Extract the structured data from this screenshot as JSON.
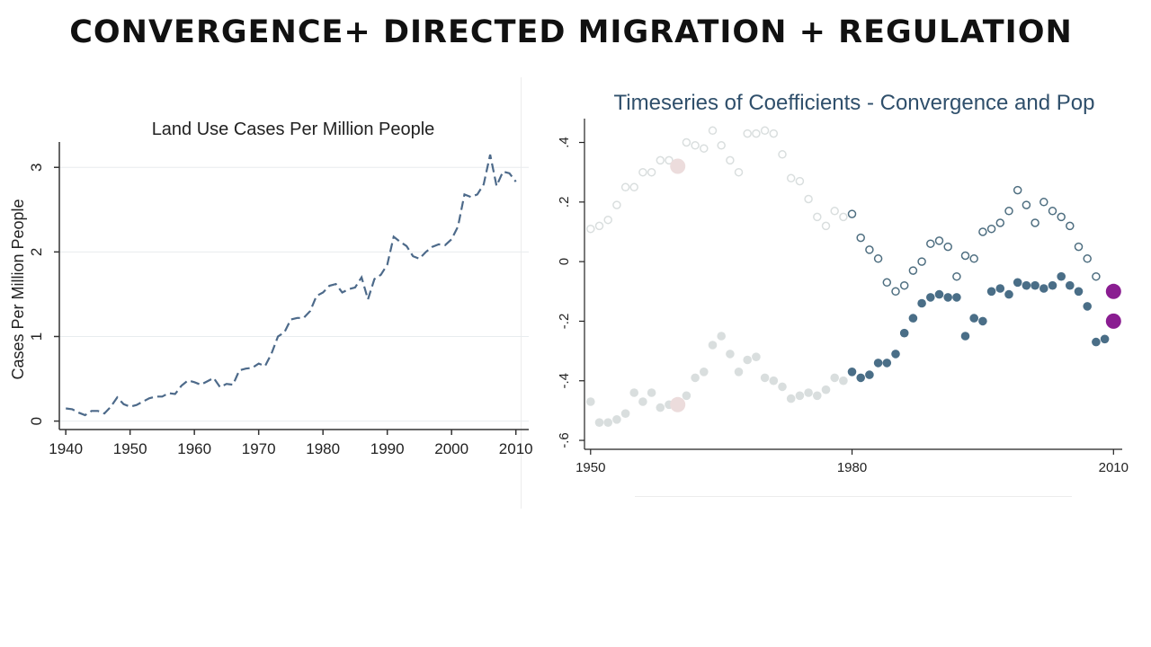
{
  "slide": {
    "title": "CONVERGENCE+ DIRECTED MIGRATION + REGULATION"
  },
  "chart_data": [
    {
      "type": "line",
      "title": "Land Use Cases Per Million People",
      "xlabel": "",
      "ylabel": "Cases Per Million People",
      "xlim": [
        1939,
        2012
      ],
      "ylim": [
        -0.1,
        3.3
      ],
      "x_ticks": [
        "1940",
        "1950",
        "1960",
        "1970",
        "1980",
        "1990",
        "2000",
        "2010"
      ],
      "y_ticks": [
        "0",
        "1",
        "2",
        "3"
      ],
      "grid": true,
      "line_style": "dashed",
      "color": "#4d6a8a",
      "series": [
        {
          "x": [
            1940,
            1941,
            1942,
            1943,
            1944,
            1945,
            1946,
            1947,
            1948,
            1949,
            1950,
            1951,
            1952,
            1953,
            1954,
            1955,
            1956,
            1957,
            1958,
            1959,
            1960,
            1961,
            1962,
            1963,
            1964,
            1965,
            1966,
            1967,
            1968,
            1969,
            1970,
            1971,
            1972,
            1973,
            1974,
            1975,
            1976,
            1977,
            1978,
            1979,
            1980,
            1981,
            1982,
            1983,
            1984,
            1985,
            1986,
            1987,
            1988,
            1989,
            1990,
            1991,
            1992,
            1993,
            1994,
            1995,
            1996,
            1997,
            1998,
            1999,
            2000,
            2001,
            2002,
            2003,
            2004,
            2005,
            2006,
            2007,
            2008,
            2009,
            2010
          ],
          "values": [
            0.15,
            0.14,
            0.1,
            0.07,
            0.12,
            0.12,
            0.09,
            0.17,
            0.28,
            0.2,
            0.17,
            0.19,
            0.23,
            0.27,
            0.29,
            0.29,
            0.33,
            0.32,
            0.42,
            0.48,
            0.46,
            0.43,
            0.47,
            0.51,
            0.4,
            0.44,
            0.43,
            0.6,
            0.62,
            0.63,
            0.68,
            0.65,
            0.8,
            1.0,
            1.05,
            1.2,
            1.22,
            1.22,
            1.3,
            1.48,
            1.52,
            1.6,
            1.62,
            1.52,
            1.56,
            1.58,
            1.7,
            1.44,
            1.68,
            1.73,
            1.85,
            2.18,
            2.12,
            2.07,
            1.95,
            1.92,
            2.0,
            2.06,
            2.09,
            2.08,
            2.15,
            2.3,
            2.68,
            2.65,
            2.68,
            2.8,
            3.15,
            2.78,
            2.95,
            2.93,
            2.83
          ]
        }
      ]
    },
    {
      "type": "scatter",
      "title": "Timeseries of Coefficients - Convergence and Pop",
      "xlabel": "",
      "ylabel": "",
      "xlim": [
        1949.3,
        2011
      ],
      "ylim": [
        -0.63,
        0.48
      ],
      "x_ticks": [
        "1950",
        "1980",
        "2010"
      ],
      "y_ticks": [
        ".4",
        ".2",
        "0",
        "-.2",
        "-.4",
        "-.6"
      ],
      "grid": false,
      "colors": {
        "hollow": "#4e6e80",
        "filled": "#4a6e87",
        "faded": "#d9dede",
        "faded_filled": "#d9dede",
        "highlight_pink": "#ecdcdc",
        "highlight_purple": "#8a1d91"
      },
      "series": [
        {
          "marker": "hollow",
          "x": [
            1950,
            1951,
            1952,
            1953,
            1954,
            1955,
            1956,
            1957,
            1958,
            1959,
            1960,
            1961,
            1962,
            1963,
            1964,
            1965,
            1966,
            1967,
            1968,
            1969,
            1970,
            1971,
            1972,
            1973,
            1974,
            1975,
            1976,
            1977,
            1978,
            1979,
            1980,
            1981,
            1982,
            1983,
            1984,
            1985,
            1986,
            1987,
            1988,
            1989,
            1990,
            1991,
            1992,
            1993,
            1994,
            1995,
            1996,
            1997,
            1998,
            1999,
            2000,
            2001,
            2002,
            2003,
            2004,
            2005,
            2006,
            2007,
            2008,
            2009,
            2010
          ],
          "values": [
            0.11,
            0.12,
            0.14,
            0.19,
            0.25,
            0.25,
            0.3,
            0.3,
            0.34,
            0.34,
            0.33,
            0.4,
            0.39,
            0.38,
            0.44,
            0.39,
            0.34,
            0.3,
            0.43,
            0.43,
            0.44,
            0.43,
            0.36,
            0.28,
            0.27,
            0.21,
            0.15,
            0.12,
            0.17,
            0.15,
            0.16,
            0.08,
            0.04,
            0.01,
            -0.07,
            -0.1,
            -0.08,
            -0.03,
            0.0,
            0.06,
            0.07,
            0.05,
            -0.05,
            0.02,
            0.01,
            0.1,
            0.11,
            0.13,
            0.17,
            0.24,
            0.19,
            0.13,
            0.2,
            0.17,
            0.15,
            0.12,
            0.05,
            0.01,
            -0.05,
            null,
            null
          ]
        },
        {
          "marker": "filled",
          "x": [
            1950,
            1951,
            1952,
            1953,
            1954,
            1955,
            1956,
            1957,
            1958,
            1959,
            1960,
            1961,
            1962,
            1963,
            1964,
            1965,
            1966,
            1967,
            1968,
            1969,
            1970,
            1971,
            1972,
            1973,
            1974,
            1975,
            1976,
            1977,
            1978,
            1979,
            1980,
            1981,
            1982,
            1983,
            1984,
            1985,
            1986,
            1987,
            1988,
            1989,
            1990,
            1991,
            1992,
            1993,
            1994,
            1995,
            1996,
            1997,
            1998,
            1999,
            2000,
            2001,
            2002,
            2003,
            2004,
            2005,
            2006,
            2007,
            2008,
            2009,
            2010
          ],
          "values": [
            -0.47,
            -0.54,
            -0.54,
            -0.53,
            -0.51,
            -0.44,
            -0.47,
            -0.44,
            -0.49,
            -0.48,
            -0.48,
            -0.45,
            -0.39,
            -0.37,
            -0.28,
            -0.25,
            -0.31,
            -0.37,
            -0.33,
            -0.32,
            -0.39,
            -0.4,
            -0.42,
            -0.46,
            -0.45,
            -0.44,
            -0.45,
            -0.43,
            -0.39,
            -0.4,
            -0.37,
            -0.39,
            -0.38,
            -0.34,
            -0.34,
            -0.31,
            -0.24,
            -0.19,
            -0.14,
            -0.12,
            -0.11,
            -0.12,
            -0.12,
            -0.25,
            -0.19,
            -0.2,
            -0.1,
            -0.09,
            -0.11,
            -0.07,
            -0.08,
            -0.08,
            -0.09,
            -0.08,
            -0.05,
            -0.08,
            -0.1,
            -0.15,
            -0.27,
            -0.26,
            null
          ]
        },
        {
          "marker": "highlight_pink",
          "x": [
            1960,
            1960
          ],
          "values": [
            0.32,
            -0.48
          ]
        },
        {
          "marker": "highlight_purple",
          "x": [
            2010,
            2010
          ],
          "values": [
            -0.1,
            -0.2
          ]
        }
      ]
    }
  ]
}
